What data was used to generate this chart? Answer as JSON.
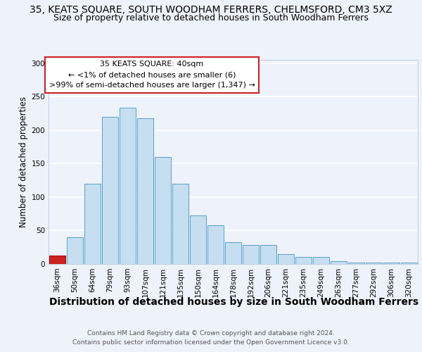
{
  "title": "35, KEATS SQUARE, SOUTH WOODHAM FERRERS, CHELMSFORD, CM3 5XZ",
  "subtitle": "Size of property relative to detached houses in South Woodham Ferrers",
  "xlabel": "Distribution of detached houses by size in South Woodham Ferrers",
  "ylabel": "Number of detached properties",
  "footnote1": "Contains HM Land Registry data © Crown copyright and database right 2024.",
  "footnote2": "Contains public sector information licensed under the Open Government Licence v3.0.",
  "categories": [
    "36sqm",
    "50sqm",
    "64sqm",
    "79sqm",
    "93sqm",
    "107sqm",
    "121sqm",
    "135sqm",
    "150sqm",
    "164sqm",
    "178sqm",
    "192sqm",
    "206sqm",
    "221sqm",
    "235sqm",
    "249sqm",
    "263sqm",
    "277sqm",
    "292sqm",
    "306sqm",
    "320sqm"
  ],
  "bar_heights": [
    13,
    40,
    120,
    220,
    233,
    218,
    160,
    120,
    73,
    58,
    33,
    28,
    28,
    15,
    11,
    11,
    4,
    2,
    2,
    2,
    2
  ],
  "bar_color": "#c5dff0",
  "bar_edge_color": "#5a9ec9",
  "highlight_bar_color": "#cc2222",
  "highlight_bar_index": 0,
  "highlight_bar_edge_color": "#aa0000",
  "annotation_line1": "35 KEATS SQUARE: 40sqm",
  "annotation_line2": "← <1% of detached houses are smaller (6)",
  "annotation_line3": ">99% of semi-detached houses are larger (1,347) →",
  "annotation_box_fc": "#ffffff",
  "annotation_box_ec": "#cc2222",
  "ylim": [
    0,
    305
  ],
  "yticks": [
    0,
    50,
    100,
    150,
    200,
    250,
    300
  ],
  "background_color": "#eef2fa",
  "grid_color": "#ffffff",
  "title_fontsize": 10,
  "subtitle_fontsize": 9,
  "xlabel_fontsize": 10,
  "ylabel_fontsize": 8.5,
  "tick_fontsize": 7.5,
  "annot_fontsize": 8,
  "footnote_fontsize": 6.5
}
